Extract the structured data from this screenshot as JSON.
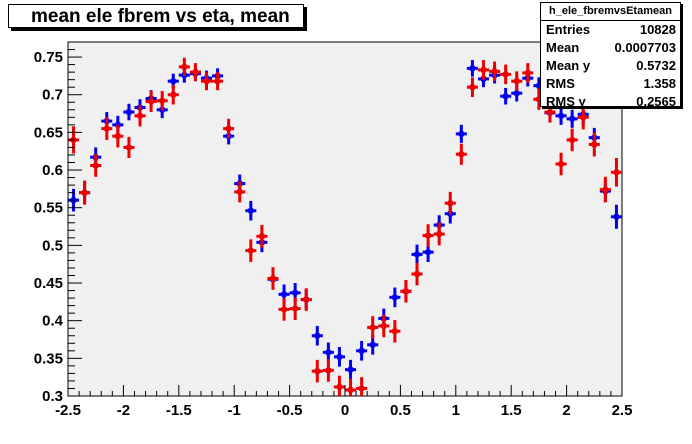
{
  "title": "mean ele fbrem vs eta, mean",
  "stats": {
    "name": "h_ele_fbremvsEtamean",
    "rows": [
      {
        "key": "Entries",
        "value": "10828"
      },
      {
        "key": "Mean",
        "value": "0.0007703"
      },
      {
        "key": "Mean y",
        "value": "0.5732"
      },
      {
        "key": "RMS",
        "value": "1.358"
      },
      {
        "key": "RMS y",
        "value": "0.2565"
      }
    ]
  },
  "chart_data": {
    "type": "scatter",
    "title": "mean ele fbrem vs eta, mean",
    "xlabel": "",
    "ylabel": "",
    "xlim": [
      -2.5,
      2.5
    ],
    "ylim": [
      0.3,
      0.77
    ],
    "x_ticks": [
      "-2.5",
      "-2",
      "-1.5",
      "-1",
      "-0.5",
      "0",
      "0.5",
      "1",
      "1.5",
      "2",
      "2.5"
    ],
    "y_ticks": [
      "0.3",
      "0.35",
      "0.4",
      "0.45",
      "0.5",
      "0.55",
      "0.6",
      "0.65",
      "0.7",
      "0.75"
    ],
    "grid": false,
    "series": [
      {
        "color": "#0000ee",
        "x_err": 0.05,
        "points": [
          [
            -2.45,
            0.56,
            0.015
          ],
          [
            -2.35,
            0.57,
            0.014
          ],
          [
            -2.25,
            0.617,
            0.013
          ],
          [
            -2.15,
            0.665,
            0.012
          ],
          [
            -2.05,
            0.66,
            0.012
          ],
          [
            -1.95,
            0.677,
            0.011
          ],
          [
            -1.85,
            0.683,
            0.011
          ],
          [
            -1.75,
            0.695,
            0.011
          ],
          [
            -1.65,
            0.68,
            0.011
          ],
          [
            -1.55,
            0.718,
            0.01
          ],
          [
            -1.45,
            0.726,
            0.01
          ],
          [
            -1.35,
            0.728,
            0.01
          ],
          [
            -1.25,
            0.722,
            0.01
          ],
          [
            -1.15,
            0.725,
            0.01
          ],
          [
            -1.05,
            0.645,
            0.011
          ],
          [
            -0.95,
            0.582,
            0.012
          ],
          [
            -0.85,
            0.546,
            0.013
          ],
          [
            -0.75,
            0.504,
            0.013
          ],
          [
            -0.65,
            0.455,
            0.013
          ],
          [
            -0.55,
            0.435,
            0.013
          ],
          [
            -0.45,
            0.437,
            0.013
          ],
          [
            -0.35,
            0.428,
            0.013
          ],
          [
            -0.25,
            0.38,
            0.013
          ],
          [
            -0.15,
            0.358,
            0.013
          ],
          [
            -0.05,
            0.352,
            0.013
          ],
          [
            0.05,
            0.335,
            0.013
          ],
          [
            0.15,
            0.36,
            0.013
          ],
          [
            0.25,
            0.368,
            0.013
          ],
          [
            0.35,
            0.403,
            0.013
          ],
          [
            0.45,
            0.431,
            0.013
          ],
          [
            0.55,
            0.439,
            0.013
          ],
          [
            0.65,
            0.488,
            0.013
          ],
          [
            0.75,
            0.491,
            0.013
          ],
          [
            0.85,
            0.527,
            0.013
          ],
          [
            0.95,
            0.542,
            0.013
          ],
          [
            1.05,
            0.648,
            0.012
          ],
          [
            1.15,
            0.735,
            0.011
          ],
          [
            1.25,
            0.721,
            0.011
          ],
          [
            1.35,
            0.726,
            0.011
          ],
          [
            1.45,
            0.698,
            0.011
          ],
          [
            1.55,
            0.702,
            0.011
          ],
          [
            1.65,
            0.722,
            0.011
          ],
          [
            1.75,
            0.712,
            0.011
          ],
          [
            1.85,
            0.676,
            0.012
          ],
          [
            1.95,
            0.672,
            0.012
          ],
          [
            2.05,
            0.668,
            0.012
          ],
          [
            2.15,
            0.674,
            0.013
          ],
          [
            2.25,
            0.643,
            0.013
          ],
          [
            2.35,
            0.572,
            0.014
          ],
          [
            2.45,
            0.538,
            0.016
          ]
        ]
      },
      {
        "color": "#ee0000",
        "x_err": 0.05,
        "points": [
          [
            -2.45,
            0.64,
            0.018
          ],
          [
            -2.35,
            0.57,
            0.016
          ],
          [
            -2.25,
            0.606,
            0.015
          ],
          [
            -2.15,
            0.655,
            0.015
          ],
          [
            -2.05,
            0.645,
            0.015
          ],
          [
            -1.95,
            0.63,
            0.014
          ],
          [
            -1.85,
            0.672,
            0.014
          ],
          [
            -1.75,
            0.691,
            0.014
          ],
          [
            -1.65,
            0.692,
            0.013
          ],
          [
            -1.55,
            0.7,
            0.013
          ],
          [
            -1.45,
            0.737,
            0.012
          ],
          [
            -1.35,
            0.73,
            0.012
          ],
          [
            -1.25,
            0.718,
            0.012
          ],
          [
            -1.15,
            0.718,
            0.012
          ],
          [
            -1.05,
            0.655,
            0.013
          ],
          [
            -0.95,
            0.571,
            0.014
          ],
          [
            -0.85,
            0.493,
            0.015
          ],
          [
            -0.75,
            0.512,
            0.015
          ],
          [
            -0.65,
            0.456,
            0.015
          ],
          [
            -0.55,
            0.415,
            0.015
          ],
          [
            -0.45,
            0.416,
            0.015
          ],
          [
            -0.35,
            0.428,
            0.015
          ],
          [
            -0.25,
            0.333,
            0.015
          ],
          [
            -0.15,
            0.334,
            0.015
          ],
          [
            -0.05,
            0.312,
            0.015
          ],
          [
            0.05,
            0.308,
            0.015
          ],
          [
            0.15,
            0.31,
            0.015
          ],
          [
            0.25,
            0.391,
            0.015
          ],
          [
            0.35,
            0.393,
            0.015
          ],
          [
            0.45,
            0.386,
            0.015
          ],
          [
            0.55,
            0.439,
            0.015
          ],
          [
            0.65,
            0.462,
            0.015
          ],
          [
            0.75,
            0.513,
            0.015
          ],
          [
            0.85,
            0.515,
            0.015
          ],
          [
            0.95,
            0.556,
            0.015
          ],
          [
            1.05,
            0.621,
            0.014
          ],
          [
            1.15,
            0.71,
            0.013
          ],
          [
            1.25,
            0.733,
            0.013
          ],
          [
            1.35,
            0.731,
            0.013
          ],
          [
            1.45,
            0.727,
            0.013
          ],
          [
            1.55,
            0.718,
            0.013
          ],
          [
            1.65,
            0.729,
            0.013
          ],
          [
            1.75,
            0.694,
            0.014
          ],
          [
            1.85,
            0.677,
            0.014
          ],
          [
            1.95,
            0.608,
            0.015
          ],
          [
            2.05,
            0.64,
            0.015
          ],
          [
            2.15,
            0.67,
            0.016
          ],
          [
            2.25,
            0.634,
            0.016
          ],
          [
            2.35,
            0.574,
            0.017
          ],
          [
            2.45,
            0.597,
            0.019
          ]
        ]
      }
    ]
  }
}
